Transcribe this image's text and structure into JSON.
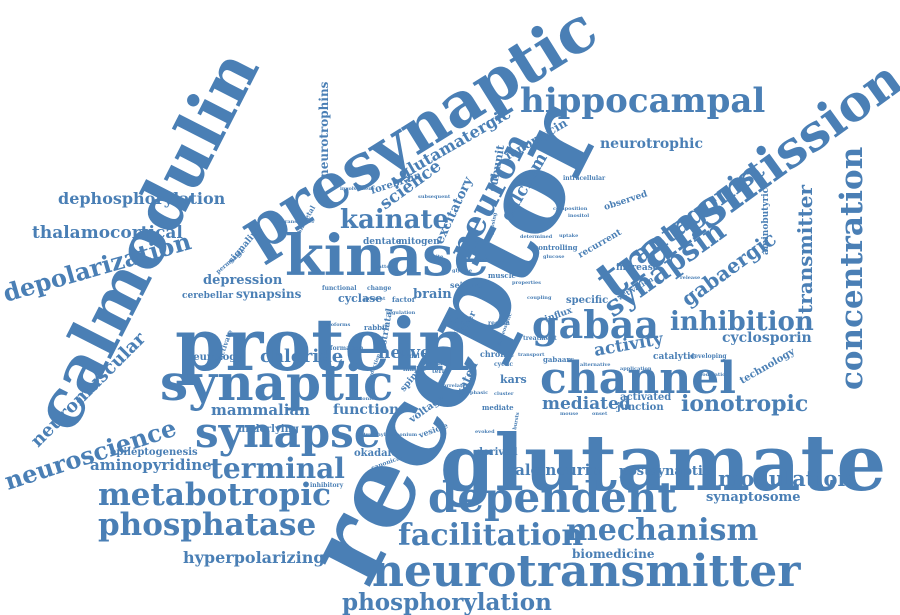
{
  "color": "#4a7fb5",
  "words": [
    {
      "text": "receptor"
    },
    {
      "text": "glutamate"
    },
    {
      "text": "presynaptic"
    },
    {
      "text": "calmodulin"
    },
    {
      "text": "transmission"
    },
    {
      "text": "protein"
    },
    {
      "text": "synaptic"
    },
    {
      "text": "kinase"
    },
    {
      "text": "neurotransmitter"
    },
    {
      "text": "dependent"
    },
    {
      "text": "synapse"
    },
    {
      "text": "channel"
    },
    {
      "text": "gabaa"
    },
    {
      "text": "hippocampal"
    },
    {
      "text": "concentration"
    },
    {
      "text": "metabotropic"
    },
    {
      "text": "phosphatase"
    },
    {
      "text": "facilitation"
    },
    {
      "text": "mechanism"
    },
    {
      "text": "neuron"
    },
    {
      "text": "depolarization"
    },
    {
      "text": "neuroscience"
    },
    {
      "text": "kainate"
    },
    {
      "text": "synapsin"
    },
    {
      "text": "antagonist"
    },
    {
      "text": "inhibition"
    },
    {
      "text": "terminal"
    },
    {
      "text": "phosphorylation"
    },
    {
      "text": "ionotropic"
    },
    {
      "text": "modulation"
    },
    {
      "text": "gabaergic"
    },
    {
      "text": "transmitter"
    },
    {
      "text": "neuromuscular"
    },
    {
      "text": "dephosphorylation"
    },
    {
      "text": "thalamocortical"
    },
    {
      "text": "glutamatergic"
    },
    {
      "text": "science"
    },
    {
      "text": "calcium"
    },
    {
      "text": "neurotrophic"
    },
    {
      "text": "neurotrophins"
    },
    {
      "text": "mediated"
    },
    {
      "text": "activity"
    },
    {
      "text": "cyclosporin"
    },
    {
      "text": "chloride"
    },
    {
      "text": "nerve"
    },
    {
      "text": "mammalian"
    },
    {
      "text": "function"
    },
    {
      "text": "calcineurin"
    },
    {
      "text": "postsynaptic"
    },
    {
      "text": "synaptosome"
    },
    {
      "text": "aminopyridine"
    },
    {
      "text": "hyperpolarizing"
    },
    {
      "text": "biomedicine"
    },
    {
      "text": "depression"
    },
    {
      "text": "synapsins"
    },
    {
      "text": "dentate"
    },
    {
      "text": "mitogen"
    },
    {
      "text": "cyclase"
    },
    {
      "text": "brain"
    },
    {
      "text": "excitatory"
    },
    {
      "text": "ionomycin"
    },
    {
      "text": "subunit"
    },
    {
      "text": "epileptogenesis"
    },
    {
      "text": "underlying"
    },
    {
      "text": "okadaic"
    },
    {
      "text": "derived"
    },
    {
      "text": "junction"
    },
    {
      "text": "activated"
    },
    {
      "text": "technology"
    },
    {
      "text": "aminobutyric"
    },
    {
      "text": "specific"
    },
    {
      "text": "increase"
    },
    {
      "text": "neurology"
    },
    {
      "text": "kars"
    },
    {
      "text": "cerebellar"
    },
    {
      "text": "forebrain"
    },
    {
      "text": "intracellular"
    },
    {
      "text": "observed"
    },
    {
      "text": "recurrent"
    },
    {
      "text": "catalytic"
    },
    {
      "text": "developing"
    },
    {
      "text": "signaling"
    },
    {
      "text": "activation"
    },
    {
      "text": "influx"
    },
    {
      "text": "type"
    },
    {
      "text": "fiber"
    },
    {
      "text": "mediate"
    },
    {
      "text": "inhibitory"
    },
    {
      "text": "voltage"
    },
    {
      "text": "vesicle"
    },
    {
      "text": "gated"
    },
    {
      "text": "spiny"
    },
    {
      "text": "seizure"
    },
    {
      "text": "muscle"
    },
    {
      "text": "chronic"
    },
    {
      "text": "rabbit"
    },
    {
      "text": "skeletal"
    },
    {
      "text": "factor"
    },
    {
      "text": "change"
    },
    {
      "text": "functional"
    },
    {
      "text": "present"
    },
    {
      "text": "cyclic"
    },
    {
      "text": "canonical"
    },
    {
      "text": "striatal"
    },
    {
      "text": "formation"
    },
    {
      "text": "model"
    },
    {
      "text": "shift"
    },
    {
      "text": "term"
    },
    {
      "text": "permeable"
    },
    {
      "text": "inhibit"
    },
    {
      "text": "activate"
    },
    {
      "text": "cluster"
    },
    {
      "text": "controlling"
    },
    {
      "text": "gabaars"
    },
    {
      "text": "application"
    },
    {
      "text": "alternative"
    },
    {
      "text": "treatment"
    },
    {
      "text": "region"
    },
    {
      "text": "coupling"
    },
    {
      "text": "opposing"
    },
    {
      "text": "different"
    },
    {
      "text": "composition"
    },
    {
      "text": "determined"
    },
    {
      "text": "involvement"
    },
    {
      "text": "cotransporter"
    },
    {
      "text": "inositol"
    },
    {
      "text": "glucose"
    },
    {
      "text": "properties"
    },
    {
      "text": "subsequent"
    },
    {
      "text": "modulation"
    },
    {
      "text": "phasic"
    },
    {
      "text": "tonic"
    },
    {
      "text": "bursts"
    },
    {
      "text": "reduction"
    },
    {
      "text": "correlated"
    },
    {
      "text": "regulation"
    },
    {
      "text": "release"
    },
    {
      "text": "tetraethylammonium"
    },
    {
      "text": "homeostatic"
    },
    {
      "text": "isoforms"
    },
    {
      "text": "transport"
    },
    {
      "text": "mouse"
    },
    {
      "text": "onset"
    },
    {
      "text": "cells"
    },
    {
      "text": "evoked"
    },
    {
      "text": "pattern"
    },
    {
      "text": "glycine"
    },
    {
      "text": "uptake"
    },
    {
      "text": "site"
    }
  ]
}
